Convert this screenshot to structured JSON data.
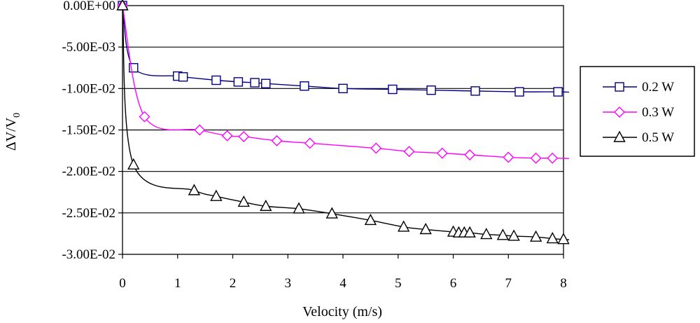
{
  "chart_data": {
    "type": "line",
    "title": "",
    "xlabel": "Velocity (m/s)",
    "ylabel_main": "ΔV/V",
    "ylabel_sub": "0",
    "xlim": [
      0,
      8
    ],
    "ylim": [
      -0.03,
      0
    ],
    "x_ticks": [
      0,
      1,
      2,
      3,
      4,
      5,
      6,
      7,
      8
    ],
    "x_tick_labels": [
      "0",
      "1",
      "2",
      "3",
      "4",
      "5",
      "6",
      "7",
      "8"
    ],
    "y_ticks": [
      0,
      -0.005,
      -0.01,
      -0.015,
      -0.02,
      -0.025,
      -0.03
    ],
    "y_tick_labels": [
      "0.00E+00",
      "-5.00E-03",
      "-1.00E-02",
      "-1.50E-02",
      "-2.00E-02",
      "-2.50E-02",
      "-3.00E-02"
    ],
    "grid": "horizontal",
    "legend_position": "right",
    "series": [
      {
        "name": "0.2 W",
        "color": "#000080",
        "marker": "square",
        "x": [
          0,
          0.2,
          1.0,
          1.1,
          1.7,
          2.1,
          2.4,
          2.6,
          3.3,
          4.0,
          4.9,
          5.6,
          6.4,
          7.2,
          7.9
        ],
        "y": [
          0,
          -0.0075,
          -0.0085,
          -0.0086,
          -0.009,
          -0.0092,
          -0.0093,
          -0.0094,
          -0.0097,
          -0.01,
          -0.0101,
          -0.0102,
          -0.0103,
          -0.0104,
          -0.0104
        ]
      },
      {
        "name": "0.3 W",
        "color": "#ff00ff",
        "marker": "diamond",
        "x": [
          0,
          0.4,
          1.4,
          1.9,
          2.2,
          2.8,
          3.4,
          4.6,
          5.2,
          5.8,
          6.3,
          7.0,
          7.5,
          7.8
        ],
        "y": [
          0,
          -0.0134,
          -0.015,
          -0.0157,
          -0.0158,
          -0.0163,
          -0.0166,
          -0.0172,
          -0.0176,
          -0.0178,
          -0.018,
          -0.0183,
          -0.0184,
          -0.0184
        ]
      },
      {
        "name": "0.5 W",
        "color": "#000000",
        "marker": "triangle",
        "x": [
          0,
          0.2,
          1.3,
          1.7,
          2.2,
          2.6,
          3.2,
          3.8,
          4.5,
          5.1,
          5.5,
          6.0,
          6.1,
          6.2,
          6.3,
          6.6,
          6.9,
          7.1,
          7.5,
          7.8,
          8.0
        ],
        "y": [
          0,
          -0.0192,
          -0.0223,
          -0.023,
          -0.0237,
          -0.0242,
          -0.0245,
          -0.0251,
          -0.0259,
          -0.0267,
          -0.027,
          -0.0273,
          -0.0274,
          -0.0274,
          -0.0274,
          -0.0276,
          -0.0277,
          -0.0278,
          -0.0279,
          -0.0281,
          -0.0282
        ]
      }
    ]
  }
}
